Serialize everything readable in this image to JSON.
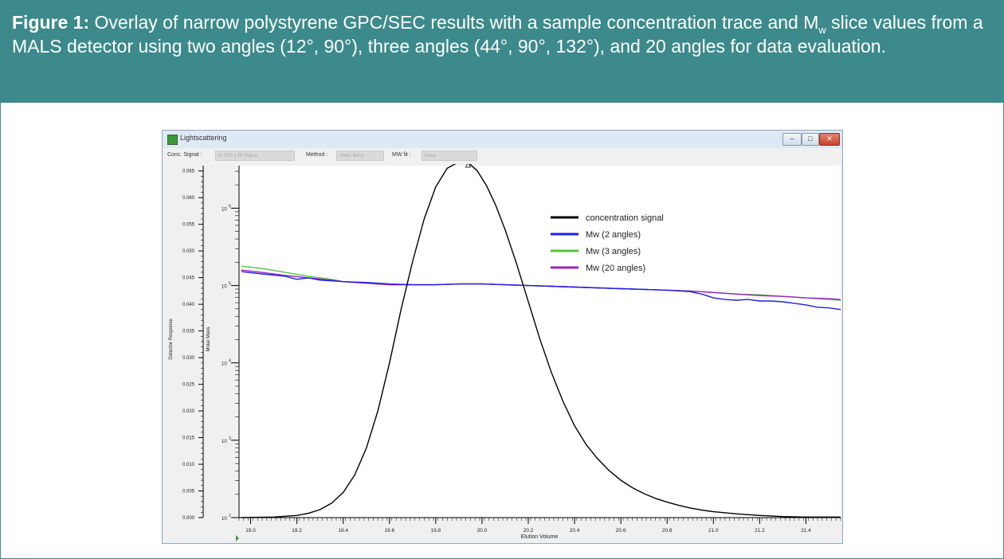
{
  "caption": {
    "label": "Figure 1:",
    "text_part1": " Overlay of narrow polystyrene GPC/SEC results with a sample concentration trace and M",
    "subscript": "w",
    "text_part2": " slice values from a MALS detector using two angles (12°, 90°), three angles (44°, 90°, 132°), and 20 angles for data evaluation."
  },
  "window": {
    "title": "Lightscattering",
    "conc_signal_label": "Conc. Signal :",
    "conc_signal_value": "IC RID 1 RI Signal",
    "method_label": "Method :",
    "method_value": "Static Berry",
    "mwfit_label": "MW fit :",
    "mwfit_value": "linear",
    "btn_min": "–",
    "btn_max": "□",
    "btn_close": "✕"
  },
  "colors": {
    "header_bg": "#3d8a8c",
    "concentration": "#000000",
    "mw2": "#1f1fe6",
    "mw3": "#55c43a",
    "mw20": "#9b22c9"
  },
  "chart_data": {
    "type": "line",
    "xlabel": "Elution Volume",
    "ylabel_left": "Detector Response",
    "ylabel_right": "Molar Mass",
    "xlim": [
      18.95,
      21.55
    ],
    "xticks": [
      "19.0",
      "19.2",
      "19.4",
      "19.6",
      "19.8",
      "20.0",
      "20.2",
      "20.4",
      "20.6",
      "20.8",
      "21.0",
      "21.2",
      "21.4"
    ],
    "left_axis": {
      "ylim": [
        0.0,
        0.066
      ],
      "ticks": [
        "0.065",
        "0.060",
        "0.055",
        "0.050",
        "0.045",
        "0.040",
        "0.035",
        "0.030",
        "0.025",
        "0.020",
        "0.015",
        "0.010",
        "0.005",
        "0.000"
      ]
    },
    "right_axis": {
      "log": true,
      "ylim_log10": [
        2,
        6.55
      ],
      "ticks": [
        {
          "base": "10",
          "exp": "6"
        },
        {
          "base": "10",
          "exp": "5"
        },
        {
          "base": "10",
          "exp": "4"
        },
        {
          "base": "10",
          "exp": "3"
        },
        {
          "base": "10",
          "exp": "2"
        }
      ]
    },
    "series": [
      {
        "name": "concentration signal",
        "axis": "left",
        "x": [
          18.96,
          19.1,
          19.2,
          19.25,
          19.3,
          19.35,
          19.4,
          19.45,
          19.5,
          19.55,
          19.6,
          19.65,
          19.7,
          19.75,
          19.8,
          19.85,
          19.9,
          19.94,
          19.98,
          20.02,
          20.06,
          20.1,
          20.15,
          20.2,
          20.25,
          20.3,
          20.35,
          20.4,
          20.45,
          20.5,
          20.55,
          20.6,
          20.65,
          20.7,
          20.75,
          20.8,
          20.85,
          20.9,
          20.95,
          21.0,
          21.1,
          21.2,
          21.3,
          21.4,
          21.55
        ],
        "y": [
          0.0,
          0.0001,
          0.0004,
          0.0008,
          0.0015,
          0.0027,
          0.0047,
          0.008,
          0.013,
          0.02,
          0.029,
          0.039,
          0.048,
          0.056,
          0.062,
          0.0655,
          0.0667,
          0.0666,
          0.065,
          0.0622,
          0.0585,
          0.054,
          0.0475,
          0.0405,
          0.0335,
          0.0272,
          0.0218,
          0.0172,
          0.0137,
          0.011,
          0.0088,
          0.007,
          0.0056,
          0.0045,
          0.0036,
          0.0029,
          0.0023,
          0.0018,
          0.0014,
          0.0011,
          0.0007,
          0.0004,
          0.0002,
          0.0001,
          0.0001
        ]
      },
      {
        "name": "Mw (2 angles)",
        "axis": "right",
        "x": [
          18.96,
          19.05,
          19.15,
          19.2,
          19.25,
          19.3,
          19.35,
          19.4,
          19.5,
          19.6,
          19.7,
          19.8,
          19.9,
          20.0,
          20.1,
          20.2,
          20.3,
          20.4,
          20.5,
          20.6,
          20.7,
          20.8,
          20.9,
          20.95,
          21.0,
          21.05,
          21.1,
          21.15,
          21.2,
          21.25,
          21.3,
          21.35,
          21.4,
          21.45,
          21.5,
          21.55
        ],
        "y": [
          5.18,
          5.15,
          5.12,
          5.08,
          5.1,
          5.07,
          5.06,
          5.05,
          5.04,
          5.02,
          5.01,
          5.01,
          5.02,
          5.02,
          5.01,
          5.0,
          4.99,
          4.98,
          4.97,
          4.96,
          4.95,
          4.94,
          4.92,
          4.89,
          4.84,
          4.82,
          4.81,
          4.82,
          4.8,
          4.8,
          4.79,
          4.77,
          4.75,
          4.72,
          4.71,
          4.69
        ]
      },
      {
        "name": "Mw (3 angles)",
        "axis": "right",
        "x": [
          18.96,
          19.05,
          19.15,
          19.25,
          19.35,
          19.4,
          19.5,
          19.6,
          19.7,
          19.8,
          19.9,
          20.0,
          20.1,
          20.2,
          20.3,
          20.4,
          20.5,
          20.6,
          20.7,
          20.8,
          20.9,
          21.0,
          21.1,
          21.2,
          21.3,
          21.4,
          21.5,
          21.55
        ],
        "y": [
          5.25,
          5.22,
          5.17,
          5.12,
          5.08,
          5.05,
          5.03,
          5.01,
          5.01,
          5.01,
          5.02,
          5.02,
          5.01,
          5.0,
          4.99,
          4.98,
          4.97,
          4.96,
          4.95,
          4.94,
          4.93,
          4.91,
          4.89,
          4.88,
          4.86,
          4.84,
          4.82,
          4.81
        ]
      },
      {
        "name": "Mw (20 angles)",
        "axis": "right",
        "x": [
          18.96,
          19.05,
          19.15,
          19.25,
          19.35,
          19.4,
          19.5,
          19.6,
          19.7,
          19.8,
          19.9,
          20.0,
          20.1,
          20.2,
          20.3,
          20.4,
          20.5,
          20.6,
          20.7,
          20.8,
          20.9,
          21.0,
          21.1,
          21.2,
          21.3,
          21.4,
          21.5,
          21.55
        ],
        "y": [
          5.2,
          5.17,
          5.13,
          5.1,
          5.07,
          5.05,
          5.03,
          5.01,
          5.01,
          5.01,
          5.02,
          5.02,
          5.01,
          5.0,
          4.99,
          4.98,
          4.97,
          4.96,
          4.95,
          4.94,
          4.93,
          4.91,
          4.89,
          4.87,
          4.86,
          4.84,
          4.83,
          4.82
        ]
      }
    ],
    "legend": [
      "concentration signal",
      "Mw (2 angles)",
      "Mw (3 angles)",
      "Mw (20 angles)"
    ],
    "legend_position": "top-right"
  }
}
